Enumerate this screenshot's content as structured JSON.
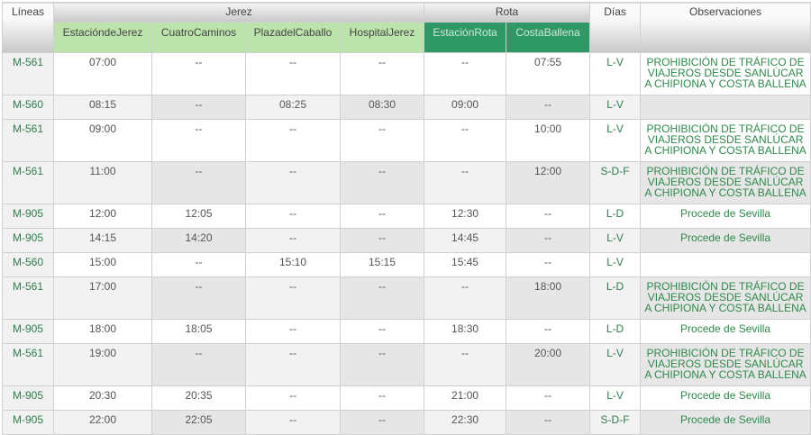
{
  "header": {
    "lineas": "Líneas",
    "jerez": "Jerez",
    "rota": "Rota",
    "dias": "Días",
    "observaciones": "Observaciones",
    "stops": [
      "EstacióndeJerez",
      "CuatroCaminos",
      "PlazadelCaballo",
      "HospitalJerez",
      "EstaciónRota",
      "CostaBallena"
    ]
  },
  "colors": {
    "jerez_header": "#bce3ac",
    "rota_header": "#2e9866",
    "link_green": "#2e7d4a"
  },
  "rows": [
    {
      "line": "M-561",
      "times": [
        "07:00",
        "--",
        "--",
        "--",
        "--",
        "07:55"
      ],
      "days": "L-V",
      "obs": "PROHIBICIÓN DE TRÁFICO DE VIAJEROS DESDE SANLÚCAR A CHIPIONA Y COSTA BALLENA"
    },
    {
      "line": "M-560",
      "times": [
        "08:15",
        "--",
        "08:25",
        "08:30",
        "09:00",
        "--"
      ],
      "days": "L-V",
      "obs": ""
    },
    {
      "line": "M-561",
      "times": [
        "09:00",
        "--",
        "--",
        "--",
        "--",
        "10:00"
      ],
      "days": "L-V",
      "obs": "PROHIBICIÓN DE TRÁFICO DE VIAJEROS DESDE SANLÚCAR A CHIPIONA Y COSTA BALLENA"
    },
    {
      "line": "M-561",
      "times": [
        "11:00",
        "--",
        "--",
        "--",
        "--",
        "12:00"
      ],
      "days": "S-D-F",
      "obs": "PROHIBICIÓN DE TRÁFICO DE VIAJEROS DESDE SANLÚCAR A CHIPIONA Y COSTA BALLENA"
    },
    {
      "line": "M-905",
      "times": [
        "12:00",
        "12:05",
        "--",
        "--",
        "12:30",
        "--"
      ],
      "days": "L-D",
      "obs": "Procede de Sevilla"
    },
    {
      "line": "M-905",
      "times": [
        "14:15",
        "14:20",
        "--",
        "--",
        "14:45",
        "--"
      ],
      "days": "L-V",
      "obs": "Procede de Sevilla"
    },
    {
      "line": "M-560",
      "times": [
        "15:00",
        "--",
        "15:10",
        "15:15",
        "15:45",
        "--"
      ],
      "days": "L-V",
      "obs": ""
    },
    {
      "line": "M-561",
      "times": [
        "17:00",
        "--",
        "--",
        "--",
        "--",
        "18:00"
      ],
      "days": "L-D",
      "obs": "PROHIBICIÓN DE TRÁFICO DE VIAJEROS DESDE SANLÚCAR A CHIPIONA Y COSTA BALLENA"
    },
    {
      "line": "M-905",
      "times": [
        "18:00",
        "18:05",
        "--",
        "--",
        "18:30",
        "--"
      ],
      "days": "L-D",
      "obs": "Procede de Sevilla"
    },
    {
      "line": "M-561",
      "times": [
        "19:00",
        "--",
        "--",
        "--",
        "--",
        "20:00"
      ],
      "days": "L-V",
      "obs": "PROHIBICIÓN DE TRÁFICO DE VIAJEROS DESDE SANLÚCAR A CHIPIONA Y COSTA BALLENA"
    },
    {
      "line": "M-905",
      "times": [
        "20:30",
        "20:35",
        "--",
        "--",
        "21:00",
        "--"
      ],
      "days": "L-V",
      "obs": "Procede de Sevilla"
    },
    {
      "line": "M-905",
      "times": [
        "22:00",
        "22:05",
        "--",
        "--",
        "22:30",
        "--"
      ],
      "days": "S-D-F",
      "obs": "Procede de Sevilla"
    }
  ]
}
